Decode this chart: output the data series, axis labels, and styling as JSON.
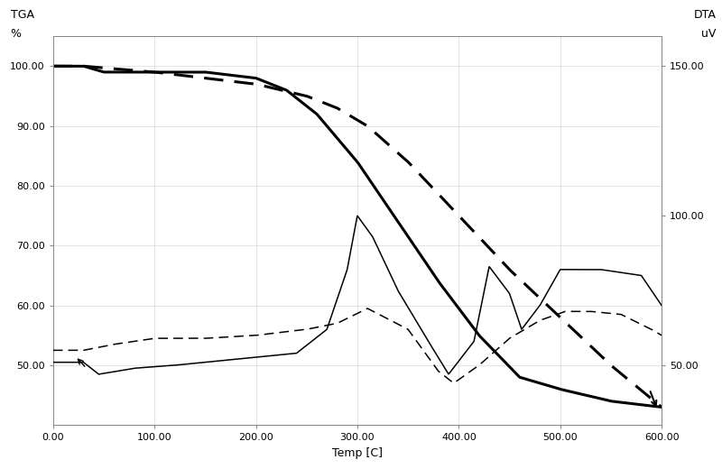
{
  "xlabel": "Temp [C]",
  "ylabel_left_line1": "TGA",
  "ylabel_left_line2": "%",
  "ylabel_right_line1": "DTA",
  "ylabel_right_line2": "uV",
  "xlim": [
    0,
    600
  ],
  "ylim_left": [
    40,
    105
  ],
  "ylim_right": [
    30,
    160
  ],
  "xticks": [
    0,
    100,
    200,
    300,
    400,
    500,
    600
  ],
  "xtick_labels": [
    "0.00",
    "100.00",
    "200.00",
    "300.00",
    "400.00",
    "500.00",
    "600.00"
  ],
  "yticks_left": [
    50.0,
    60.0,
    70.0,
    80.0,
    90.0,
    100.0
  ],
  "ytick_labels_left": [
    "50.00",
    "60.00",
    "70.00",
    "80.00",
    "90.00",
    "100.00"
  ],
  "yticks_right": [
    50.0,
    100.0,
    150.0
  ],
  "ytick_labels_right": [
    "50.00",
    "100.00",
    "150.00"
  ],
  "background_color": "#ffffff",
  "tga_solid_x": [
    0,
    30,
    50,
    100,
    150,
    200,
    230,
    260,
    300,
    340,
    380,
    420,
    460,
    500,
    550,
    600
  ],
  "tga_solid_y": [
    100,
    100,
    99,
    99,
    99,
    98,
    96,
    92,
    84,
    74,
    64,
    55,
    48,
    46,
    44,
    43
  ],
  "dta_thin_x": [
    0,
    30,
    45,
    80,
    120,
    180,
    240,
    270,
    290,
    300,
    315,
    340,
    370,
    390,
    415,
    430,
    450,
    462,
    480,
    500,
    540,
    580,
    600
  ],
  "dta_thin_y": [
    51,
    51,
    47,
    49,
    50,
    52,
    54,
    62,
    82,
    100,
    93,
    75,
    58,
    47,
    58,
    83,
    74,
    62,
    70,
    82,
    82,
    80,
    70
  ],
  "tga_dashed_x": [
    0,
    30,
    100,
    150,
    200,
    250,
    280,
    310,
    350,
    400,
    450,
    500,
    550,
    600
  ],
  "tga_dashed_y": [
    100,
    100,
    99,
    98,
    97,
    95,
    93,
    90,
    84,
    75,
    66,
    58,
    50,
    43
  ],
  "dta_dashed_x": [
    0,
    30,
    60,
    100,
    150,
    200,
    250,
    280,
    310,
    350,
    380,
    395,
    420,
    450,
    480,
    505,
    530,
    560,
    590,
    600
  ],
  "dta_dashed_y": [
    55,
    55,
    57,
    59,
    59,
    60,
    62,
    64,
    69,
    62,
    48,
    44,
    50,
    59,
    65,
    68,
    68,
    67,
    62,
    60
  ]
}
